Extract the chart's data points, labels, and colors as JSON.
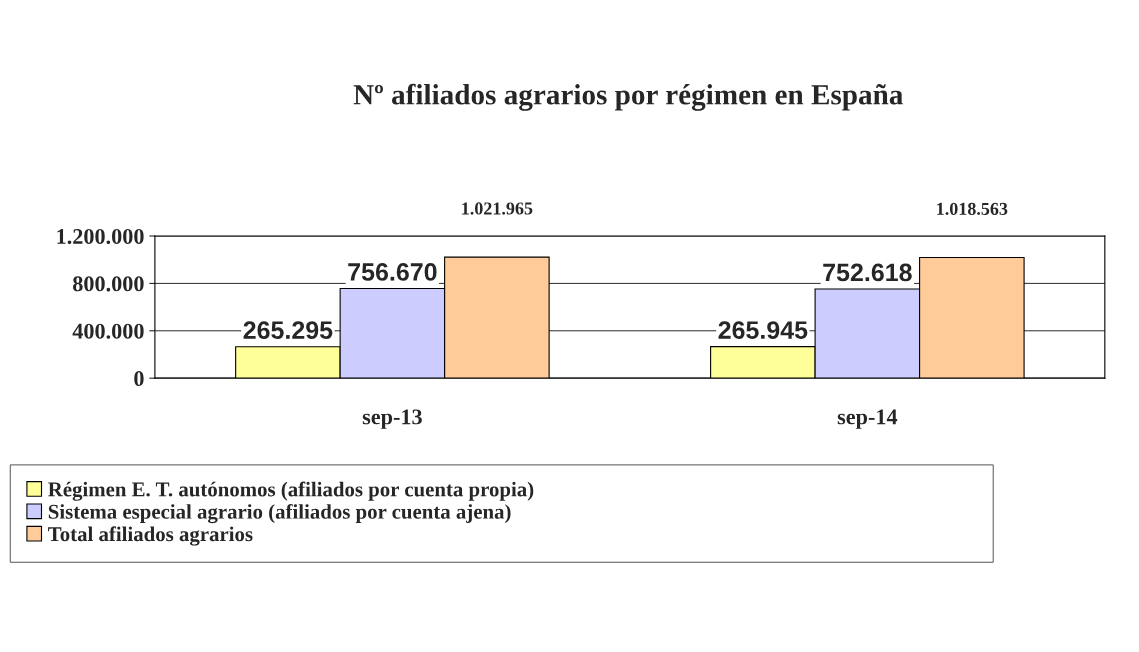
{
  "chart_data": {
    "type": "bar",
    "title": "Nº afiliados agrarios por régimen en España",
    "categories": [
      "sep-13",
      "sep-14"
    ],
    "series": [
      {
        "name": "Régimen E. T. autónomos (afiliados por cuenta propia)",
        "color": "#ffff99",
        "values": [
          265295,
          265945
        ],
        "value_labels": [
          "265.295",
          "265.945"
        ]
      },
      {
        "name": "Sistema especial agrario (afiliados por cuenta ajena)",
        "color": "#ccccff",
        "values": [
          756670,
          752618
        ],
        "value_labels": [
          "756.670",
          "752.618"
        ]
      },
      {
        "name": "Total afiliados agrarios",
        "color": "#ffcc99",
        "values": [
          1021965,
          1018563
        ],
        "value_labels": [
          "1.021.965",
          "1.018.563"
        ]
      }
    ],
    "ylim": [
      0,
      1200000
    ],
    "yticks": [
      {
        "value": 0,
        "label": "0"
      },
      {
        "value": 400000,
        "label": "400.000"
      },
      {
        "value": 800000,
        "label": "800.000"
      },
      {
        "value": 1200000,
        "label": "1.200.000"
      }
    ],
    "grid": "y",
    "legend": "bottom"
  }
}
